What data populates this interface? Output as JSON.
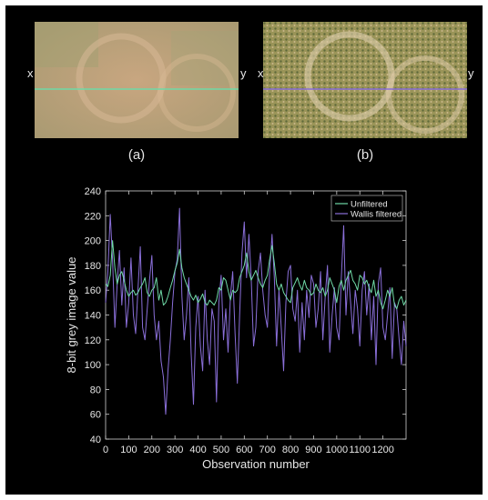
{
  "panels": [
    {
      "label": "(a)",
      "line_start": "x",
      "line_end": "y",
      "transect_color": "#6fd9a6"
    },
    {
      "label": "(b)",
      "line_start": "x",
      "line_end": "y",
      "transect_color": "#8a6fd9"
    }
  ],
  "chart_data": {
    "type": "line",
    "title": "",
    "xlabel": "Observation number",
    "ylabel": "8-bit grey image value",
    "xlim": [
      0,
      1300
    ],
    "ylim": [
      40,
      240
    ],
    "xticks": [
      0,
      100,
      200,
      300,
      400,
      500,
      600,
      700,
      800,
      900,
      1000,
      1100,
      1200
    ],
    "yticks": [
      40,
      60,
      80,
      100,
      120,
      140,
      160,
      180,
      200,
      220,
      240
    ],
    "grid": false,
    "legend": "top-right",
    "colors": {
      "background": "#000000",
      "axes": "#d0d0d0",
      "text": "#e6e6e6"
    },
    "series": [
      {
        "name": "Unfiltered",
        "color": "#6fd9a6",
        "x": [
          0,
          10,
          20,
          30,
          40,
          50,
          60,
          70,
          80,
          90,
          100,
          110,
          120,
          130,
          140,
          150,
          160,
          170,
          180,
          190,
          200,
          210,
          220,
          230,
          240,
          250,
          260,
          270,
          280,
          290,
          300,
          310,
          320,
          330,
          340,
          350,
          360,
          370,
          380,
          390,
          400,
          410,
          420,
          430,
          440,
          450,
          460,
          470,
          480,
          490,
          500,
          510,
          520,
          530,
          540,
          550,
          560,
          570,
          580,
          590,
          600,
          610,
          620,
          630,
          640,
          650,
          660,
          670,
          680,
          690,
          700,
          710,
          720,
          730,
          740,
          750,
          760,
          770,
          780,
          790,
          800,
          810,
          820,
          830,
          840,
          850,
          860,
          870,
          880,
          890,
          900,
          910,
          920,
          930,
          940,
          950,
          960,
          970,
          980,
          990,
          1000,
          1010,
          1020,
          1030,
          1040,
          1050,
          1060,
          1070,
          1080,
          1090,
          1100,
          1110,
          1120,
          1130,
          1140,
          1150,
          1160,
          1170,
          1180,
          1190,
          1200,
          1210,
          1220,
          1230,
          1240,
          1250,
          1260,
          1270,
          1280,
          1290,
          1300
        ],
        "y": [
          165,
          163,
          172,
          200,
          178,
          165,
          172,
          175,
          168,
          160,
          155,
          158,
          160,
          156,
          158,
          162,
          165,
          170,
          158,
          155,
          160,
          162,
          170,
          152,
          160,
          148,
          150,
          155,
          162,
          168,
          176,
          182,
          193,
          178,
          170,
          165,
          160,
          155,
          152,
          156,
          150,
          153,
          157,
          150,
          148,
          152,
          150,
          148,
          152,
          162,
          160,
          170,
          168,
          160,
          152,
          160,
          158,
          160,
          170,
          175,
          180,
          190,
          175,
          168,
          172,
          176,
          170,
          165,
          162,
          168,
          172,
          185,
          196,
          182,
          165,
          160,
          165,
          158,
          155,
          152,
          150,
          162,
          166,
          170,
          164,
          160,
          168,
          162,
          160,
          156,
          158,
          165,
          160,
          158,
          162,
          155,
          160,
          170,
          165,
          160,
          150,
          163,
          168,
          160,
          168,
          172,
          176,
          168,
          165,
          160,
          172,
          170,
          165,
          168,
          162,
          158,
          168,
          155,
          160,
          150,
          145,
          152,
          160,
          155,
          162,
          148,
          145,
          152,
          155,
          148,
          152
        ],
        "values_note": "estimated from plot"
      },
      {
        "name": "Wallis filtered",
        "color": "#8a6fd9",
        "x": [
          0,
          10,
          20,
          30,
          40,
          50,
          60,
          70,
          80,
          90,
          100,
          110,
          120,
          130,
          140,
          150,
          160,
          170,
          180,
          190,
          200,
          210,
          220,
          230,
          240,
          250,
          260,
          270,
          280,
          290,
          300,
          310,
          320,
          330,
          340,
          350,
          360,
          370,
          380,
          390,
          400,
          410,
          420,
          430,
          440,
          450,
          460,
          470,
          480,
          490,
          500,
          510,
          520,
          530,
          540,
          550,
          560,
          570,
          580,
          590,
          600,
          610,
          620,
          630,
          640,
          650,
          660,
          670,
          680,
          690,
          700,
          710,
          720,
          730,
          740,
          750,
          760,
          770,
          780,
          790,
          800,
          810,
          820,
          830,
          840,
          850,
          860,
          870,
          880,
          890,
          900,
          910,
          920,
          930,
          940,
          950,
          960,
          970,
          980,
          990,
          1000,
          1010,
          1020,
          1030,
          1040,
          1050,
          1060,
          1070,
          1080,
          1090,
          1100,
          1110,
          1120,
          1130,
          1140,
          1150,
          1160,
          1170,
          1180,
          1190,
          1200,
          1210,
          1220,
          1230,
          1240,
          1250,
          1260,
          1270,
          1280,
          1290,
          1300
        ],
        "y": [
          150,
          175,
          221,
          185,
          130,
          165,
          192,
          148,
          178,
          130,
          150,
          186,
          140,
          125,
          160,
          195,
          130,
          120,
          145,
          168,
          188,
          140,
          120,
          135,
          103,
          90,
          60,
          95,
          120,
          150,
          175,
          185,
          226,
          155,
          120,
          140,
          170,
          110,
          68,
          130,
          155,
          115,
          95,
          160,
          120,
          100,
          145,
          135,
          70,
          150,
          172,
          120,
          145,
          110,
          155,
          175,
          125,
          85,
          140,
          190,
          215,
          170,
          205,
          170,
          115,
          130,
          175,
          190,
          160,
          140,
          130,
          175,
          205,
          170,
          115,
          160,
          130,
          95,
          150,
          175,
          180,
          145,
          135,
          160,
          110,
          150,
          120,
          160,
          138,
          172,
          165,
          130,
          145,
          175,
          120,
          155,
          180,
          110,
          140,
          162,
          130,
          120,
          170,
          212,
          140,
          175,
          150,
          125,
          160,
          145,
          115,
          160,
          175,
          140,
          165,
          120,
          155,
          100,
          165,
          178,
          130,
          120,
          140,
          162,
          105,
          150,
          145,
          120,
          100,
          135,
          115
        ],
        "values_note": "estimated from plot"
      }
    ]
  }
}
